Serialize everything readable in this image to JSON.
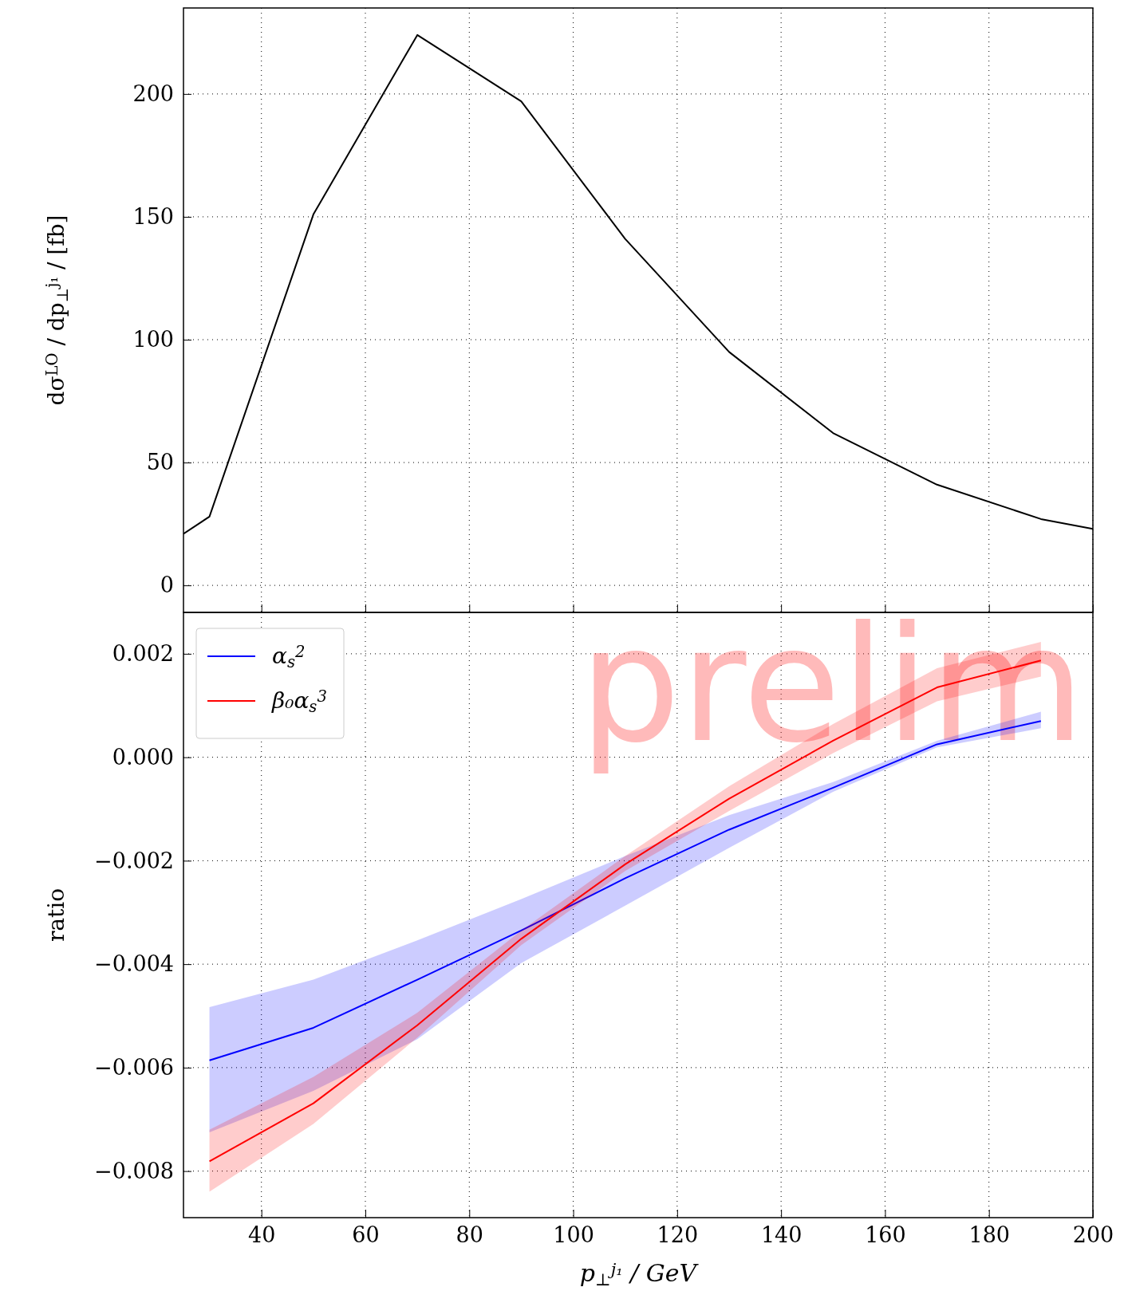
{
  "chart_data": [
    {
      "type": "line",
      "ylabel": "dσ$^{LO}$ / dp$_{⊥}$$^{j₁}$ / [fb]",
      "x": [
        25,
        30,
        50,
        70,
        90,
        110,
        130,
        150,
        170,
        190,
        200
      ],
      "series": [
        {
          "color": "#000000",
          "values": [
            21,
            28,
            151,
            224,
            197,
            141,
            95,
            62,
            41,
            27,
            23
          ]
        }
      ],
      "xlim": [
        25,
        200
      ],
      "xticks": [
        40,
        60,
        80,
        100,
        120,
        140,
        160,
        180,
        200
      ],
      "ylim": [
        -11,
        235
      ],
      "yticks": [
        0,
        50,
        100,
        150,
        200
      ],
      "grid": true,
      "tick_labels": "y"
    },
    {
      "type": "line",
      "xlabel": "p$_{⊥}$$^{j₁}$ / GeV",
      "ylabel": "ratio",
      "annotations": [
        "prelim"
      ],
      "x": [
        30,
        50,
        70,
        90,
        110,
        130,
        150,
        170,
        190
      ],
      "series": [
        {
          "name": "α$_{s}$$^{2}$",
          "color": "#0000ff",
          "values": [
            -0.00586,
            -0.00523,
            -0.0043,
            -0.00335,
            -0.00234,
            -0.0014,
            -0.00059,
            0.00025,
            0.0007
          ],
          "lower": [
            -0.00725,
            -0.00645,
            -0.00545,
            -0.00398,
            -0.00287,
            -0.00175,
            -0.00067,
            0.00019,
            0.00056
          ],
          "upper": [
            -0.00483,
            -0.0043,
            -0.00354,
            -0.00274,
            -0.00191,
            -0.00112,
            -0.00048,
            0.00032,
            0.00088
          ]
        },
        {
          "name": "β₀α$_{s}$$^{3}$",
          "color": "#ff0000",
          "values": [
            -0.00781,
            -0.00669,
            -0.00518,
            -0.00351,
            -0.00207,
            -0.0008,
            0.00032,
            0.00135,
            0.00187
          ],
          "lower": [
            -0.0084,
            -0.00709,
            -0.00542,
            -0.00363,
            -0.0022,
            -0.00104,
            8e-05,
            0.00108,
            0.00156
          ],
          "upper": [
            -0.0072,
            -0.00618,
            -0.00494,
            -0.00335,
            -0.00191,
            -0.00056,
            0.00064,
            0.00172,
            0.00223
          ]
        }
      ],
      "xlim": [
        25,
        200
      ],
      "xticks": [
        40,
        60,
        80,
        100,
        120,
        140,
        160,
        180,
        200
      ],
      "ylim": [
        -0.0089,
        0.0028
      ],
      "yticks": [
        {
          "value": -0.008,
          "label": "−0.008"
        },
        {
          "value": -0.006,
          "label": "−0.006"
        },
        {
          "value": -0.004,
          "label": "−0.004"
        },
        {
          "value": -0.002,
          "label": "−0.002"
        },
        {
          "value": 0,
          "label": "0.000"
        },
        {
          "value": 0.002,
          "label": "0.002"
        }
      ],
      "grid": true,
      "legend": "top left"
    }
  ]
}
